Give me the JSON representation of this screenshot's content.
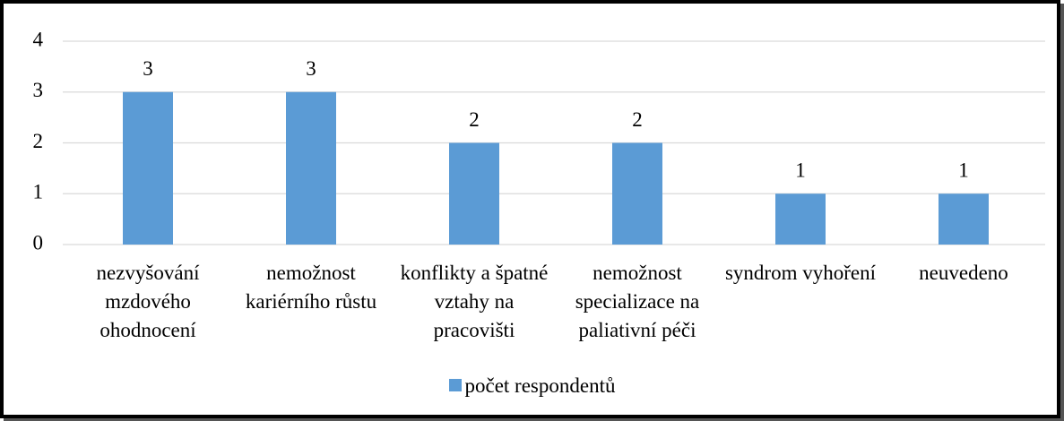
{
  "chart_data": {
    "type": "bar",
    "categories": [
      "nezvyšování mzdového ohodnocení",
      "nemožnost kariérního růstu",
      "konflikty a špatné vztahy na pracovišti",
      "nemožnost specializace na paliativní péči",
      "syndrom vyhoření",
      "neuvedeno"
    ],
    "series": [
      {
        "name": "počet respondentů",
        "color": "#5b9bd5",
        "values": [
          3,
          3,
          2,
          2,
          1,
          1
        ]
      }
    ],
    "ylim": [
      0,
      4
    ],
    "yticks": [
      0,
      1,
      2,
      3,
      4
    ],
    "grid": true,
    "legend": "bottom"
  }
}
